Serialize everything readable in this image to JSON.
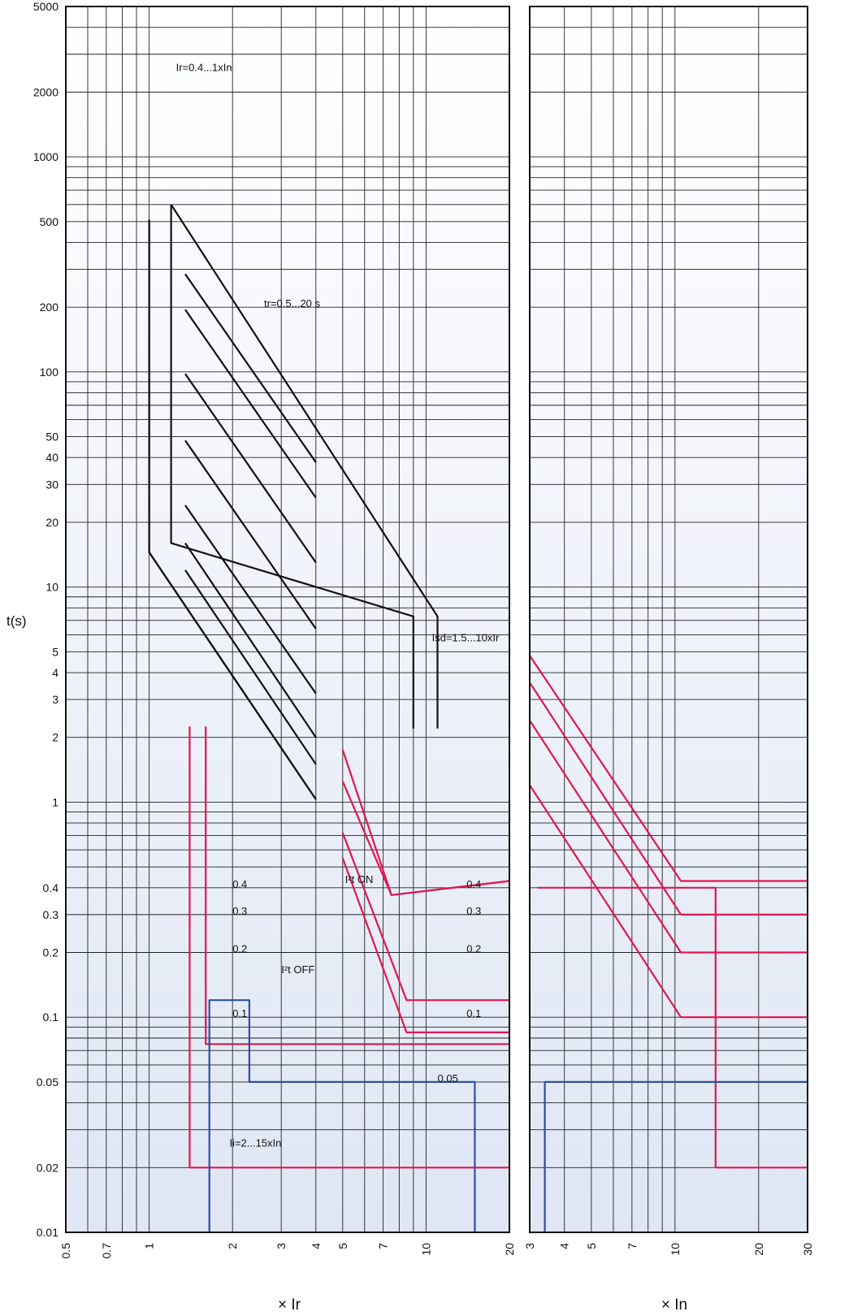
{
  "chart_data": {
    "type": "line",
    "ylabel": "t(s)",
    "y_scale": "log",
    "ylim": [
      0.01,
      5000
    ],
    "y_ticks": [
      "0.01",
      "0.02",
      "0.05",
      "0.1",
      "0.2",
      "0.3",
      "0.4",
      "1",
      "2",
      "3",
      "4",
      "5",
      "10",
      "20",
      "30",
      "40",
      "50",
      "100",
      "200",
      "500",
      "1000",
      "2000",
      "5000"
    ],
    "panels": [
      {
        "xlabel": "× Ir",
        "x_scale": "log",
        "xlim": [
          0.5,
          20
        ],
        "x_ticks": [
          "0.5",
          "0.7",
          "1",
          "2",
          "3",
          "4",
          "5",
          "7",
          "10",
          "20"
        ],
        "annotations": [
          {
            "text": "Ir=0.4...1xIn",
            "x": 1.25,
            "y": 2500
          },
          {
            "text": "tr=0.5...20 s",
            "x": 2.6,
            "y": 200
          },
          {
            "text": "Isd=1.5...10xIr",
            "x": 10.5,
            "y": 5.6
          },
          {
            "text": "I²t ON",
            "x": 5.1,
            "y": 0.42
          },
          {
            "text": "I²t OFF",
            "x": 3.0,
            "y": 0.16
          },
          {
            "text": "Ii=2...15xIn",
            "x": 1.95,
            "y": 0.025
          },
          {
            "text": "0.4",
            "x": 2.0,
            "y": 0.4
          },
          {
            "text": "0.3",
            "x": 2.0,
            "y": 0.3
          },
          {
            "text": "0.2",
            "x": 2.0,
            "y": 0.2
          },
          {
            "text": "0.1",
            "x": 2.0,
            "y": 0.1
          },
          {
            "text": "0.4",
            "x": 14.0,
            "y": 0.4
          },
          {
            "text": "0.3",
            "x": 14.0,
            "y": 0.3
          },
          {
            "text": "0.2",
            "x": 14.0,
            "y": 0.2
          },
          {
            "text": "0.1",
            "x": 14.0,
            "y": 0.1
          },
          {
            "text": "0.05",
            "x": 11.0,
            "y": 0.05
          }
        ]
      },
      {
        "xlabel": "× In",
        "x_scale": "log",
        "xlim": [
          3,
          30
        ],
        "x_ticks": [
          "3",
          "4",
          "5",
          "7",
          "10",
          "20",
          "30"
        ],
        "annotations": []
      }
    ],
    "series": [
      {
        "color": "#111111",
        "points": [
          [
            1.0,
            510
          ],
          [
            1.0,
            14.5
          ],
          [
            4.0,
            1.03
          ]
        ]
      },
      {
        "color": "#111111",
        "points": [
          [
            1.0,
            510
          ],
          [
            1.0,
            14.5
          ],
          [
            4.0,
            1.03
          ]
        ]
      },
      {
        "color": "#111111",
        "points": [
          [
            1.2,
            600
          ],
          [
            1.2,
            16
          ],
          [
            9.0,
            7.3
          ],
          [
            9.0,
            2.2
          ]
        ]
      },
      {
        "color": "#111111",
        "points": [
          [
            1.2,
            600
          ],
          [
            11.0,
            7.3
          ],
          [
            11.0,
            2.2
          ]
        ]
      },
      {
        "color": "#111111",
        "points": [
          [
            1.35,
            285
          ],
          [
            4.0,
            38
          ]
        ]
      },
      {
        "color": "#111111",
        "points": [
          [
            1.35,
            195
          ],
          [
            4.0,
            26
          ]
        ]
      },
      {
        "color": "#111111",
        "points": [
          [
            1.35,
            98
          ],
          [
            4.0,
            13
          ]
        ]
      },
      {
        "color": "#111111",
        "points": [
          [
            1.35,
            48
          ],
          [
            4.0,
            6.4
          ]
        ]
      },
      {
        "color": "#111111",
        "points": [
          [
            1.35,
            24
          ],
          [
            4.0,
            3.2
          ]
        ]
      },
      {
        "color": "#111111",
        "points": [
          [
            1.35,
            16
          ],
          [
            4.0,
            2.0
          ]
        ]
      },
      {
        "color": "#111111",
        "points": [
          [
            1.35,
            12
          ],
          [
            4.0,
            1.5
          ]
        ]
      },
      {
        "color": "#e0174f",
        "points": [
          [
            1.4,
            2.25
          ],
          [
            1.4,
            0.02
          ],
          [
            20,
            0.02
          ]
        ]
      },
      {
        "color": "#e0174f",
        "points": [
          [
            1.6,
            2.25
          ],
          [
            1.6,
            0.075
          ],
          [
            20,
            0.075
          ]
        ]
      },
      {
        "color": "#e0174f",
        "points": [
          [
            5.0,
            1.75
          ],
          [
            7.5,
            0.37
          ],
          [
            20,
            0.43
          ]
        ]
      },
      {
        "color": "#e0174f",
        "points": [
          [
            5.0,
            1.25
          ],
          [
            7.5,
            0.37
          ],
          [
            20,
            0.43
          ]
        ]
      },
      {
        "color": "#e0174f",
        "points": [
          [
            5.0,
            0.72
          ],
          [
            8.5,
            0.12
          ],
          [
            20,
            0.12
          ]
        ]
      },
      {
        "color": "#e0174f",
        "points": [
          [
            5.0,
            0.55
          ],
          [
            8.5,
            0.085
          ],
          [
            20,
            0.085
          ]
        ]
      },
      {
        "color": "#2e4ea3",
        "points": [
          [
            1.65,
            0.01
          ],
          [
            1.65,
            0.12
          ],
          [
            2.3,
            0.12
          ],
          [
            2.3,
            0.05
          ],
          [
            15,
            0.05
          ],
          [
            15,
            0.01
          ]
        ]
      },
      {
        "color": "#e0174f",
        "points": [
          [
            3.0,
            4.8
          ],
          [
            10.5,
            0.43
          ],
          [
            30,
            0.43
          ]
        ]
      },
      {
        "color": "#e0174f",
        "points": [
          [
            3.0,
            3.6
          ],
          [
            10.5,
            0.3
          ],
          [
            30,
            0.3
          ]
        ]
      },
      {
        "color": "#e0174f",
        "points": [
          [
            3.0,
            2.4
          ],
          [
            10.5,
            0.2
          ],
          [
            30,
            0.2
          ]
        ]
      },
      {
        "color": "#e0174f",
        "points": [
          [
            3.0,
            1.2
          ],
          [
            10.5,
            0.1
          ],
          [
            30,
            0.1
          ]
        ]
      },
      {
        "color": "#e0174f",
        "points": [
          [
            3.2,
            0.4
          ],
          [
            14,
            0.4
          ],
          [
            14,
            0.02
          ],
          [
            30,
            0.02
          ]
        ]
      },
      {
        "color": "#2e4ea3",
        "points": [
          [
            3.4,
            0.01
          ],
          [
            3.4,
            0.05
          ],
          [
            30,
            0.05
          ]
        ]
      }
    ]
  }
}
